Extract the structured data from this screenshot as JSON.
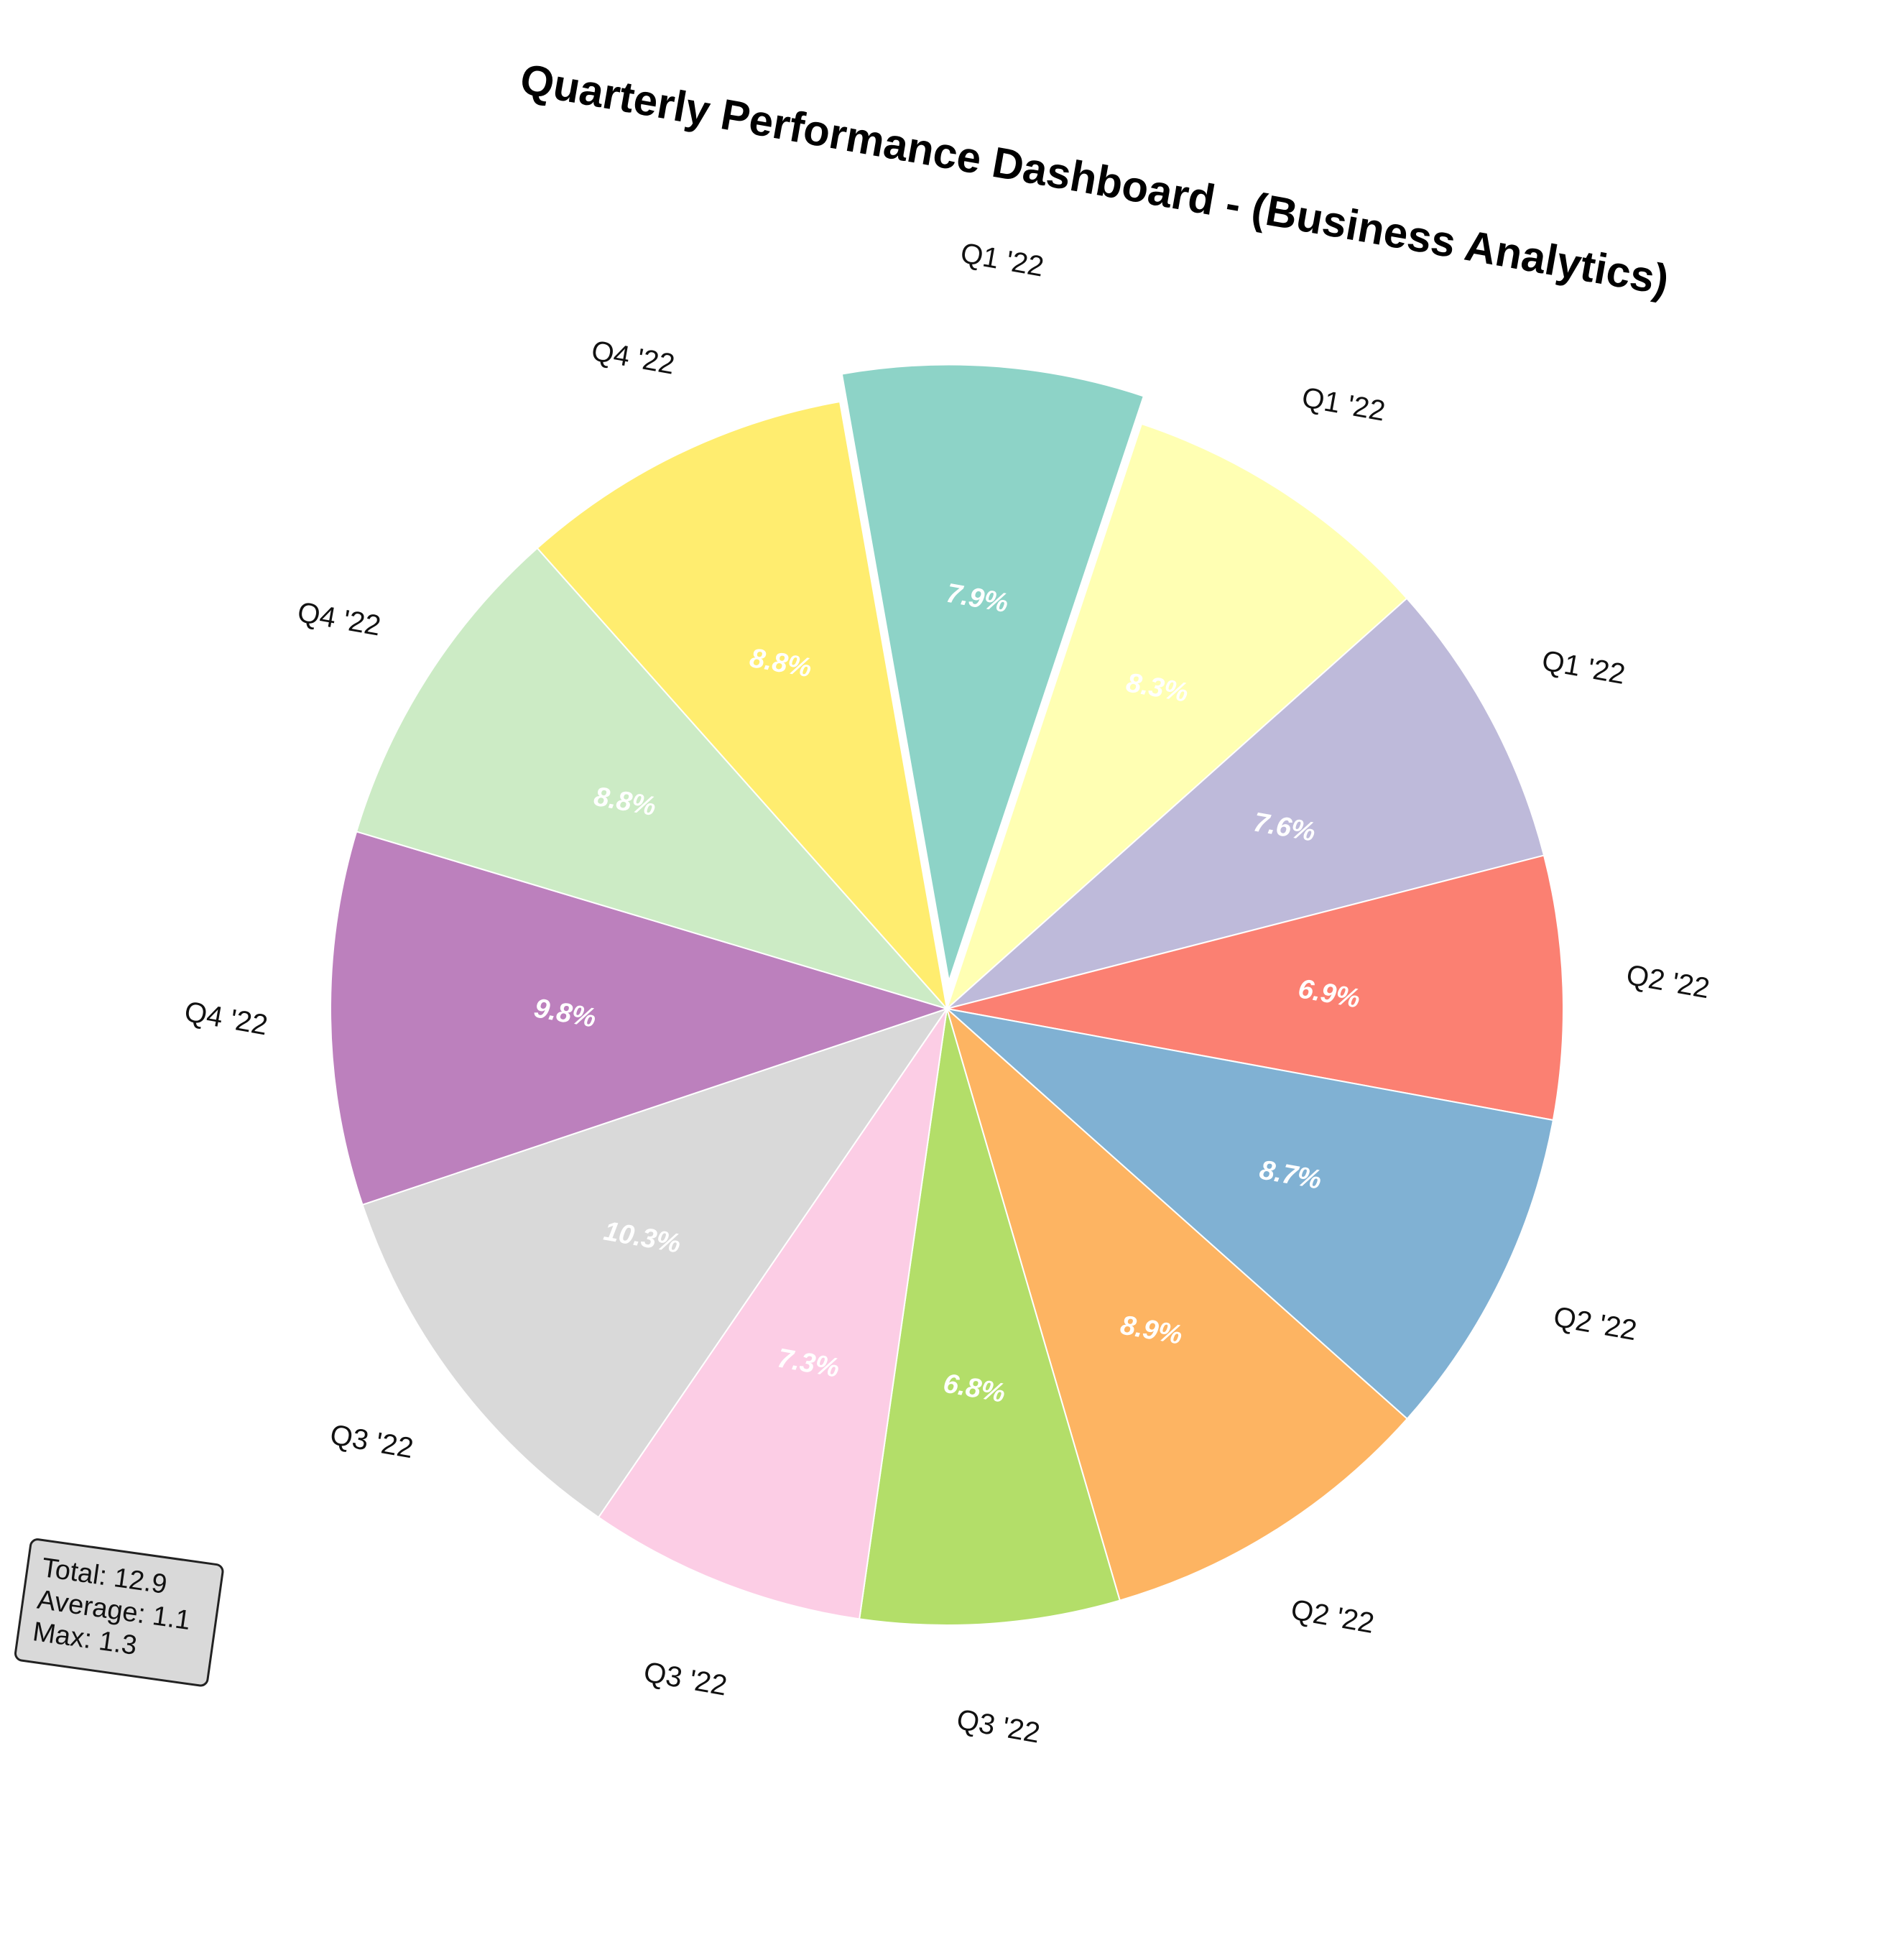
{
  "chart_data": {
    "type": "pie",
    "title": "Quarterly Performance Dashboard - (Business Analytics)",
    "slices": [
      {
        "label": "Q1 '22",
        "percent": 7.9,
        "color": "#8dd3c7",
        "exploded": true
      },
      {
        "label": "Q1 '22",
        "percent": 8.3,
        "color": "#ffffb3"
      },
      {
        "label": "Q1 '22",
        "percent": 7.6,
        "color": "#bebada"
      },
      {
        "label": "Q2 '22",
        "percent": 6.9,
        "color": "#fb8072"
      },
      {
        "label": "Q2 '22",
        "percent": 8.7,
        "color": "#80b1d3"
      },
      {
        "label": "Q2 '22",
        "percent": 8.9,
        "color": "#fdb462"
      },
      {
        "label": "Q3 '22",
        "percent": 6.8,
        "color": "#b3de69"
      },
      {
        "label": "Q3 '22",
        "percent": 7.3,
        "color": "#fccde5"
      },
      {
        "label": "Q3 '22",
        "percent": 10.3,
        "color": "#d9d9d9"
      },
      {
        "label": "Q4 '22",
        "percent": 9.8,
        "color": "#bc80bd"
      },
      {
        "label": "Q4 '22",
        "percent": 8.8,
        "color": "#ccebc5"
      },
      {
        "label": "Q4 '22",
        "percent": 8.8,
        "color": "#ffed6f"
      }
    ],
    "stats": {
      "total": "Total: 12.9",
      "average": "Average: 1.1",
      "max": "Max: 1.3"
    }
  }
}
